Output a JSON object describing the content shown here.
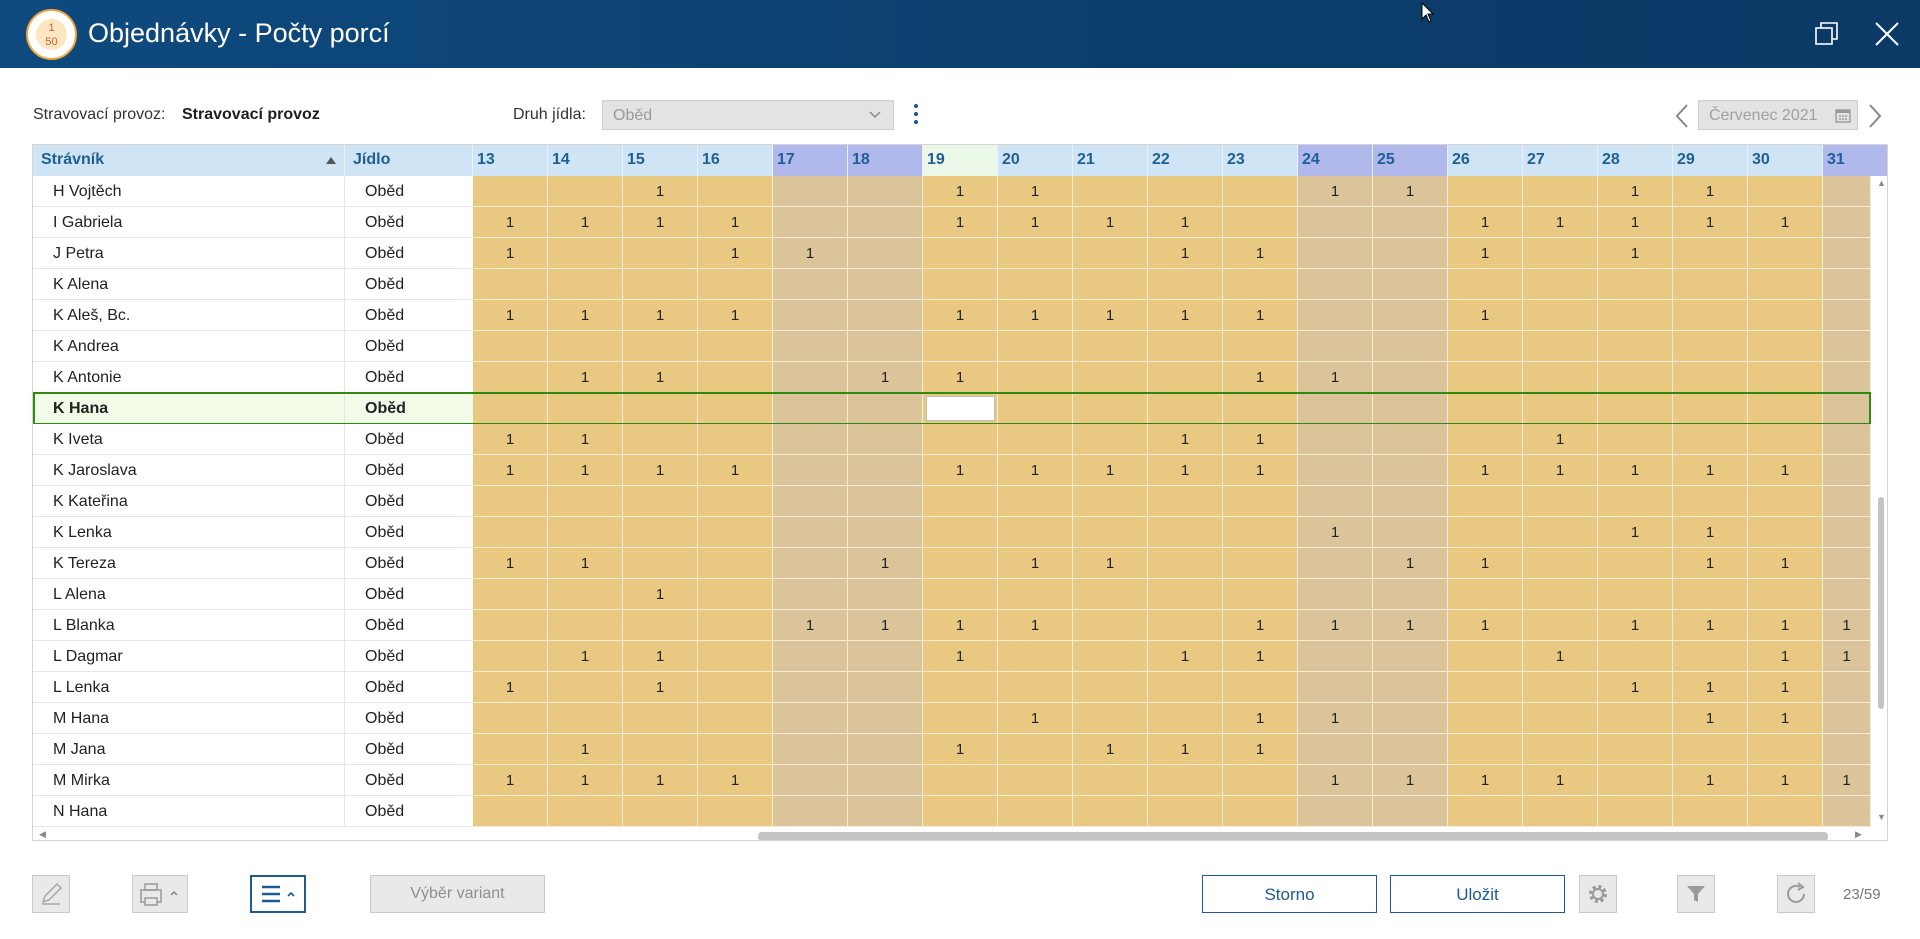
{
  "window": {
    "title": "Objednávky - Počty porcí",
    "logo_top": "1",
    "logo_bottom": "50"
  },
  "filters": {
    "provoz_label": "Stravovací provoz:",
    "provoz_value": "Stravovací provoz",
    "druh_label": "Druh jídla:",
    "druh_value": "Oběd",
    "month_value": "Červenec 2021"
  },
  "colors": {
    "weekday_cell": "#e9c881",
    "weekend_cell": "#dcc49a",
    "weekday_header": "#cfe5f5",
    "weekend_header": "#b0b8ec",
    "today_header": "#ecf8e7",
    "selection": "#2e8b10",
    "accent": "#1d5a93"
  },
  "grid": {
    "headers": {
      "name": "Strávník",
      "meal": "Jídlo"
    },
    "sort_indicator": "ascending",
    "days": [
      "13",
      "14",
      "15",
      "16",
      "17",
      "18",
      "19",
      "20",
      "21",
      "22",
      "23",
      "24",
      "25",
      "26",
      "27",
      "28",
      "29",
      "30",
      "31"
    ],
    "weekend_days": [
      "17",
      "18",
      "24",
      "25",
      "31"
    ],
    "today": "19",
    "rows": [
      {
        "name": "H Vojtěch",
        "meal": "Oběd",
        "cells": [
          "",
          "",
          "1",
          "",
          "",
          "",
          "1",
          "1",
          "",
          "",
          "",
          "1",
          "1",
          "",
          "",
          "1",
          "1",
          "",
          ""
        ]
      },
      {
        "name": "I Gabriela",
        "meal": "Oběd",
        "cells": [
          "1",
          "1",
          "1",
          "1",
          "",
          "",
          "1",
          "1",
          "1",
          "1",
          "",
          "",
          "",
          "1",
          "1",
          "1",
          "1",
          "1",
          ""
        ]
      },
      {
        "name": "J Petra",
        "meal": "Oběd",
        "cells": [
          "1",
          "",
          "",
          "1",
          "1",
          "",
          "",
          "",
          "",
          "1",
          "1",
          "",
          "",
          "1",
          "",
          "1",
          "",
          "",
          ""
        ]
      },
      {
        "name": "K Alena",
        "meal": "Oběd",
        "cells": [
          "",
          "",
          "",
          "",
          "",
          "",
          "",
          "",
          "",
          "",
          "",
          "",
          "",
          "",
          "",
          "",
          "",
          "",
          ""
        ]
      },
      {
        "name": "K Aleš, Bc.",
        "meal": "Oběd",
        "cells": [
          "1",
          "1",
          "1",
          "1",
          "",
          "",
          "1",
          "1",
          "1",
          "1",
          "1",
          "",
          "",
          "1",
          "",
          "",
          "",
          "",
          ""
        ]
      },
      {
        "name": "K Andrea",
        "meal": "Oběd",
        "cells": [
          "",
          "",
          "",
          "",
          "",
          "",
          "",
          "",
          "",
          "",
          "",
          "",
          "",
          "",
          "",
          "",
          "",
          "",
          ""
        ]
      },
      {
        "name": "K Antonie",
        "meal": "Oběd",
        "cells": [
          "",
          "1",
          "1",
          "",
          "",
          "1",
          "1",
          "",
          "",
          "",
          "1",
          "1",
          "",
          "",
          "",
          "",
          "",
          "",
          ""
        ]
      },
      {
        "name": "K Hana",
        "meal": "Oběd",
        "selected": true,
        "cells": [
          "",
          "",
          "",
          "",
          "",
          "",
          "",
          "",
          "",
          "",
          "",
          "",
          "",
          "",
          "",
          "",
          "",
          "",
          ""
        ]
      },
      {
        "name": "K Iveta",
        "meal": "Oběd",
        "cells": [
          "1",
          "1",
          "",
          "",
          "",
          "",
          "",
          "",
          "",
          "1",
          "1",
          "",
          "",
          "",
          "1",
          "",
          "",
          "",
          ""
        ]
      },
      {
        "name": "K Jaroslava",
        "meal": "Oběd",
        "cells": [
          "1",
          "1",
          "1",
          "1",
          "",
          "",
          "1",
          "1",
          "1",
          "1",
          "1",
          "",
          "",
          "1",
          "1",
          "1",
          "1",
          "1",
          ""
        ]
      },
      {
        "name": "K Kateřina",
        "meal": "Oběd",
        "cells": [
          "",
          "",
          "",
          "",
          "",
          "",
          "",
          "",
          "",
          "",
          "",
          "",
          "",
          "",
          "",
          "",
          "",
          "",
          ""
        ]
      },
      {
        "name": "K Lenka",
        "meal": "Oběd",
        "cells": [
          "",
          "",
          "",
          "",
          "",
          "",
          "",
          "",
          "",
          "",
          "",
          "1",
          "",
          "",
          "",
          "1",
          "1",
          "",
          ""
        ]
      },
      {
        "name": "K Tereza",
        "meal": "Oběd",
        "cells": [
          "1",
          "1",
          "",
          "",
          "",
          "1",
          "",
          "1",
          "1",
          "",
          "",
          "",
          "1",
          "1",
          "",
          "",
          "1",
          "1",
          ""
        ]
      },
      {
        "name": "L Alena",
        "meal": "Oběd",
        "cells": [
          "",
          "",
          "1",
          "",
          "",
          "",
          "",
          "",
          "",
          "",
          "",
          "",
          "",
          "",
          "",
          "",
          "",
          "",
          ""
        ]
      },
      {
        "name": "L Blanka",
        "meal": "Oběd",
        "cells": [
          "",
          "",
          "",
          "",
          "1",
          "1",
          "1",
          "1",
          "",
          "",
          "1",
          "1",
          "1",
          "1",
          "",
          "1",
          "1",
          "1",
          "1"
        ]
      },
      {
        "name": "L Dagmar",
        "meal": "Oběd",
        "cells": [
          "",
          "1",
          "1",
          "",
          "",
          "",
          "1",
          "",
          "",
          "1",
          "1",
          "",
          "",
          "",
          "1",
          "",
          "",
          "1",
          "1"
        ]
      },
      {
        "name": "L Lenka",
        "meal": "Oběd",
        "cells": [
          "1",
          "",
          "1",
          "",
          "",
          "",
          "",
          "",
          "",
          "",
          "",
          "",
          "",
          "",
          "",
          "1",
          "1",
          "1",
          ""
        ]
      },
      {
        "name": "M Hana",
        "meal": "Oběd",
        "cells": [
          "",
          "",
          "",
          "",
          "",
          "",
          "",
          "1",
          "",
          "",
          "1",
          "1",
          "",
          "",
          "",
          "",
          "1",
          "1",
          ""
        ]
      },
      {
        "name": "M Jana",
        "meal": "Oběd",
        "cells": [
          "",
          "1",
          "",
          "",
          "",
          "",
          "1",
          "",
          "1",
          "1",
          "1",
          "",
          "",
          "",
          "",
          "",
          "",
          "",
          ""
        ]
      },
      {
        "name": "M Mirka",
        "meal": "Oběd",
        "cells": [
          "1",
          "1",
          "1",
          "1",
          "",
          "",
          "",
          "",
          "",
          "",
          "",
          "1",
          "1",
          "1",
          "1",
          "",
          "1",
          "1",
          "1"
        ]
      },
      {
        "name": "N Hana",
        "meal": "Oběd",
        "cells": [
          "",
          "",
          "",
          "",
          "",
          "",
          "",
          "",
          "",
          "",
          "",
          "",
          "",
          "",
          "",
          "",
          "",
          "",
          ""
        ]
      }
    ]
  },
  "toolbar": {
    "variant_label": "Výběr variant",
    "storno_label": "Storno",
    "save_label": "Uložit",
    "record_counter": "23/59"
  },
  "icons": [
    "app-logo-icon",
    "restore-icon",
    "close-icon",
    "cursor-icon",
    "chevron-down-icon",
    "kebab-menu-icon",
    "chevron-left-icon",
    "chevron-right-icon",
    "calendar-icon",
    "sort-asc-icon",
    "pencil-icon",
    "printer-icon",
    "hamburger-menu-icon",
    "gear-icon",
    "filter-icon",
    "refresh-icon"
  ]
}
